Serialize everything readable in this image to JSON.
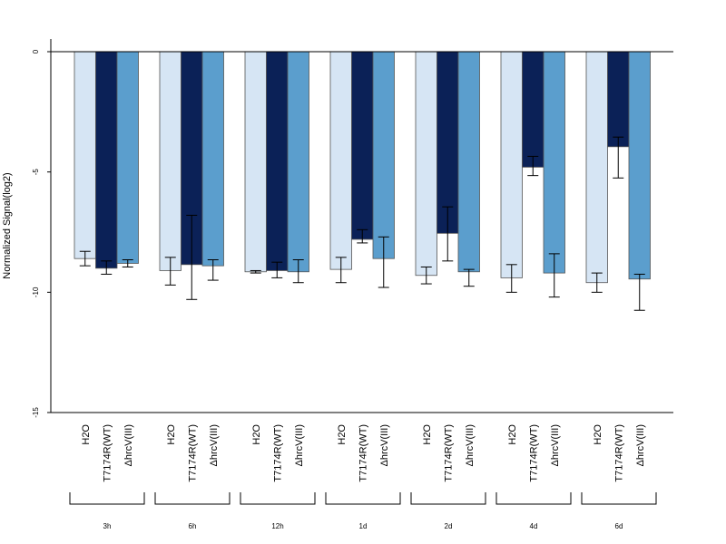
{
  "chart_data": {
    "type": "bar",
    "title": "",
    "xlabel": "",
    "ylabel": "Normalized Signal(log2)",
    "ylim": [
      -15,
      0.5
    ],
    "yticks": [
      0,
      -5,
      -10,
      -15
    ],
    "grid": false,
    "legend": "none",
    "baseline": 0,
    "groups": [
      "3h",
      "6h",
      "12h",
      "1d",
      "2d",
      "4d",
      "6d"
    ],
    "series": [
      {
        "name": "H2O",
        "color": "#d6e5f4",
        "values": [
          -8.6,
          -9.1,
          -9.15,
          -9.05,
          -9.3,
          -9.4,
          -9.6
        ],
        "err_low": [
          -8.9,
          -9.7,
          -9.2,
          -9.6,
          -9.65,
          -10.0,
          -10.0
        ],
        "err_high": [
          -8.3,
          -8.55,
          -9.1,
          -8.55,
          -8.95,
          -8.85,
          -9.2
        ]
      },
      {
        "name": "T7174R(WT)",
        "color": "#0b2157",
        "values": [
          -9.0,
          -8.85,
          -9.1,
          -7.8,
          -7.55,
          -4.8,
          -3.95
        ],
        "err_low": [
          -9.25,
          -10.3,
          -9.4,
          -7.95,
          -8.7,
          -5.15,
          -5.25
        ],
        "err_high": [
          -8.7,
          -6.8,
          -8.75,
          -7.4,
          -6.45,
          -4.35,
          -3.55
        ]
      },
      {
        "name": "ΔhrcV(III)",
        "color": "#5b9ecd",
        "values": [
          -8.8,
          -8.9,
          -9.15,
          -8.6,
          -9.15,
          -9.2,
          -9.45
        ],
        "err_low": [
          -8.95,
          -9.5,
          -9.6,
          -9.8,
          -9.75,
          -10.2,
          -10.75
        ],
        "err_high": [
          -8.65,
          -8.65,
          -8.65,
          -7.7,
          -9.05,
          -8.4,
          -9.25
        ]
      }
    ]
  }
}
